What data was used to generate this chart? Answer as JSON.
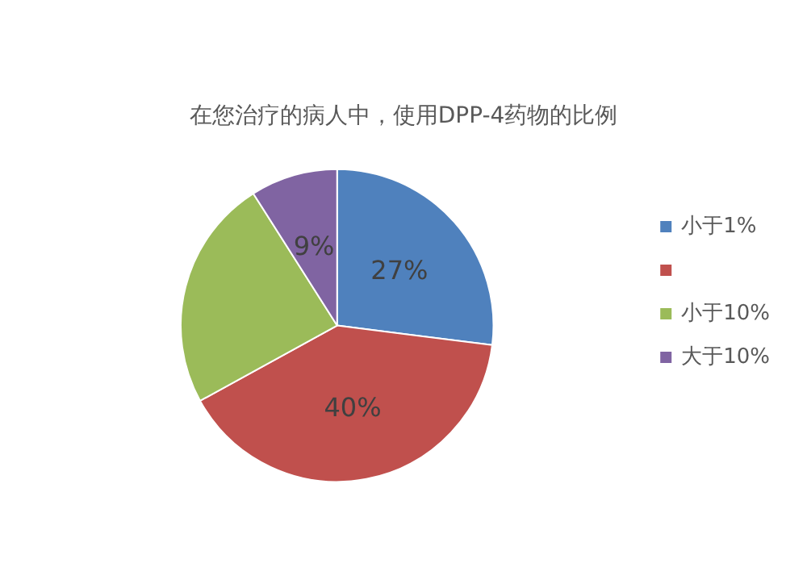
{
  "chart_data": {
    "type": "pie",
    "title": "在您治疗的病人中，使用DPP-4药物的比例",
    "categories": [
      "小于1%",
      null,
      "小于10%",
      "大于10%"
    ],
    "values": [
      27,
      40,
      24,
      9
    ],
    "value_labels": [
      "27%",
      "40%",
      null,
      "9%"
    ],
    "colors": [
      "#4f81bd",
      "#c0504d",
      "#9bbb59",
      "#8064a2"
    ],
    "legend": "right"
  }
}
